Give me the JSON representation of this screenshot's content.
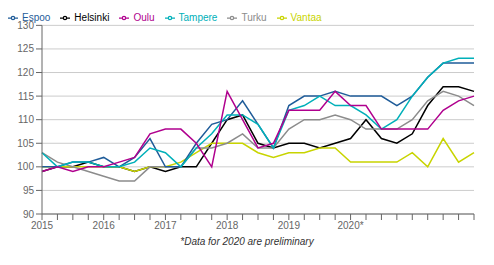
{
  "chart_data": {
    "type": "line",
    "title": "",
    "annotations": [
      "*Data for 2020 are preliminary"
    ],
    "categories": [
      "2015",
      null,
      null,
      null,
      "2016",
      null,
      null,
      null,
      "2017",
      null,
      null,
      null,
      "2018",
      null,
      null,
      null,
      "2019",
      null,
      null,
      null,
      "2020*",
      null,
      null,
      null,
      null,
      null,
      null,
      null,
      null
    ],
    "series": [
      {
        "name": "Helsinki",
        "color": "#000000",
        "values": [
          99,
          100,
          100,
          101,
          100,
          100,
          99,
          100,
          99,
          100,
          100,
          105,
          110,
          111,
          105,
          104,
          105,
          105,
          104,
          105,
          106,
          110,
          106,
          105,
          107,
          113,
          117,
          117,
          116
        ]
      },
      {
        "name": "Vantaa",
        "color": "#C8D400",
        "values": [
          100,
          100,
          100,
          100,
          100,
          100,
          99,
          100,
          100,
          101,
          103,
          105,
          105,
          105,
          103,
          102,
          103,
          103,
          104,
          104,
          101,
          101,
          101,
          101,
          103,
          100,
          106,
          101,
          103
        ]
      },
      {
        "name": "Turku",
        "color": "#8C8C8C",
        "values": [
          103,
          101,
          100,
          99,
          98,
          97,
          97,
          100,
          100,
          100,
          104,
          104,
          105,
          107,
          104,
          104,
          108,
          110,
          110,
          111,
          110,
          108,
          108,
          108,
          110,
          114,
          116,
          115,
          113
        ]
      },
      {
        "name": "Espoo",
        "color": "#1F5C99",
        "values": [
          100,
          100,
          101,
          101,
          102,
          100,
          102,
          106,
          100,
          100,
          105,
          109,
          110,
          114,
          109,
          104,
          113,
          115,
          115,
          116,
          115,
          115,
          115,
          113,
          115,
          119,
          122,
          122,
          122
        ]
      },
      {
        "name": "Tampere",
        "color": "#00B0B9",
        "values": [
          103,
          100,
          101,
          101,
          100,
          100,
          101,
          104,
          103,
          100,
          104,
          107,
          111,
          111,
          109,
          104,
          112,
          113,
          115,
          113,
          113,
          111,
          108,
          110,
          115,
          119,
          122,
          123,
          123
        ]
      },
      {
        "name": "Oulu",
        "color": "#B0008E",
        "values": [
          99,
          100,
          99,
          100,
          100,
          101,
          102,
          107,
          108,
          108,
          105,
          100,
          116,
          110,
          104,
          105,
          112,
          112,
          112,
          116,
          113,
          113,
          108,
          108,
          108,
          108,
          112,
          114,
          115
        ]
      }
    ],
    "ylim": [
      90,
      130
    ],
    "yticks": [
      90,
      95,
      100,
      105,
      110,
      115,
      120,
      125,
      130
    ],
    "grid": true,
    "legend": "upper left"
  }
}
